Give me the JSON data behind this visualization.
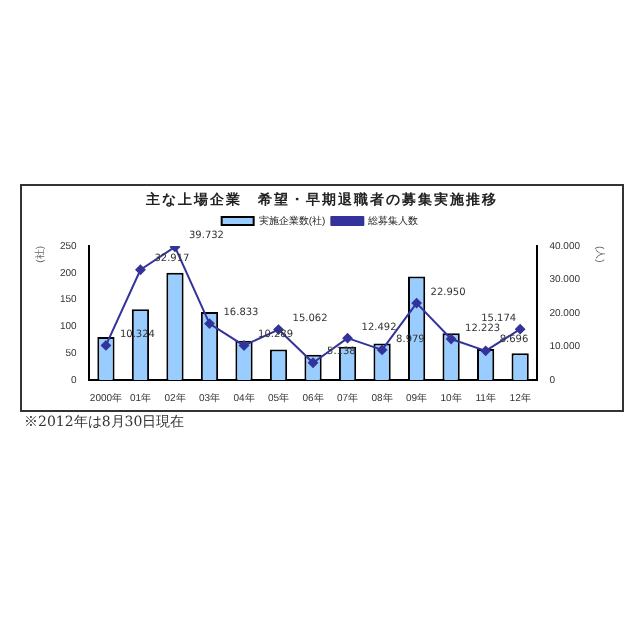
{
  "chart_data": {
    "type": "bar",
    "title": "主な上場企業　希望・早期退職者の募集実施推移",
    "ylabel": "(社)",
    "y2label": "(人)",
    "categories": [
      "2000年",
      "01年",
      "02年",
      "03年",
      "04年",
      "05年",
      "06年",
      "07年",
      "08年",
      "09年",
      "10年",
      "11年",
      "12年"
    ],
    "series": [
      {
        "name": "実施企業数(社)",
        "color": "#99ccff",
        "values": [
          80,
          132,
          200,
          127,
          73,
          57,
          47,
          62,
          68,
          193,
          87,
          58,
          50
        ]
      },
      {
        "name": "総募集人数",
        "type": "line",
        "axis": "y2",
        "color": "#333399",
        "marker": "diamond",
        "values": [
          10324,
          32917,
          39732,
          16833,
          10289,
          15062,
          5138,
          12492,
          8979,
          22950,
          12223,
          8696,
          15174
        ],
        "value_labels": [
          "10.324",
          "32.917",
          "39.732",
          "16.833",
          "10.289",
          "15.062",
          "5.138",
          "12.492",
          "8.979",
          "22.950",
          "12.223",
          "8.696",
          "15.174"
        ]
      }
    ],
    "ylim": [
      0,
      250
    ],
    "yticks": [
      0,
      50,
      100,
      150,
      200,
      250
    ],
    "y2lim": [
      0,
      40000
    ],
    "y2ticks": [
      {
        "value": 0,
        "label": "0"
      },
      {
        "value": 10000,
        "label": "10.000"
      },
      {
        "value": 20000,
        "label": "20.000"
      },
      {
        "value": 30000,
        "label": "30.000"
      },
      {
        "value": 40000,
        "label": "40.000"
      }
    ],
    "grid": false,
    "legend": "top",
    "annotations": [
      "※2012年は8月30日現在"
    ]
  }
}
